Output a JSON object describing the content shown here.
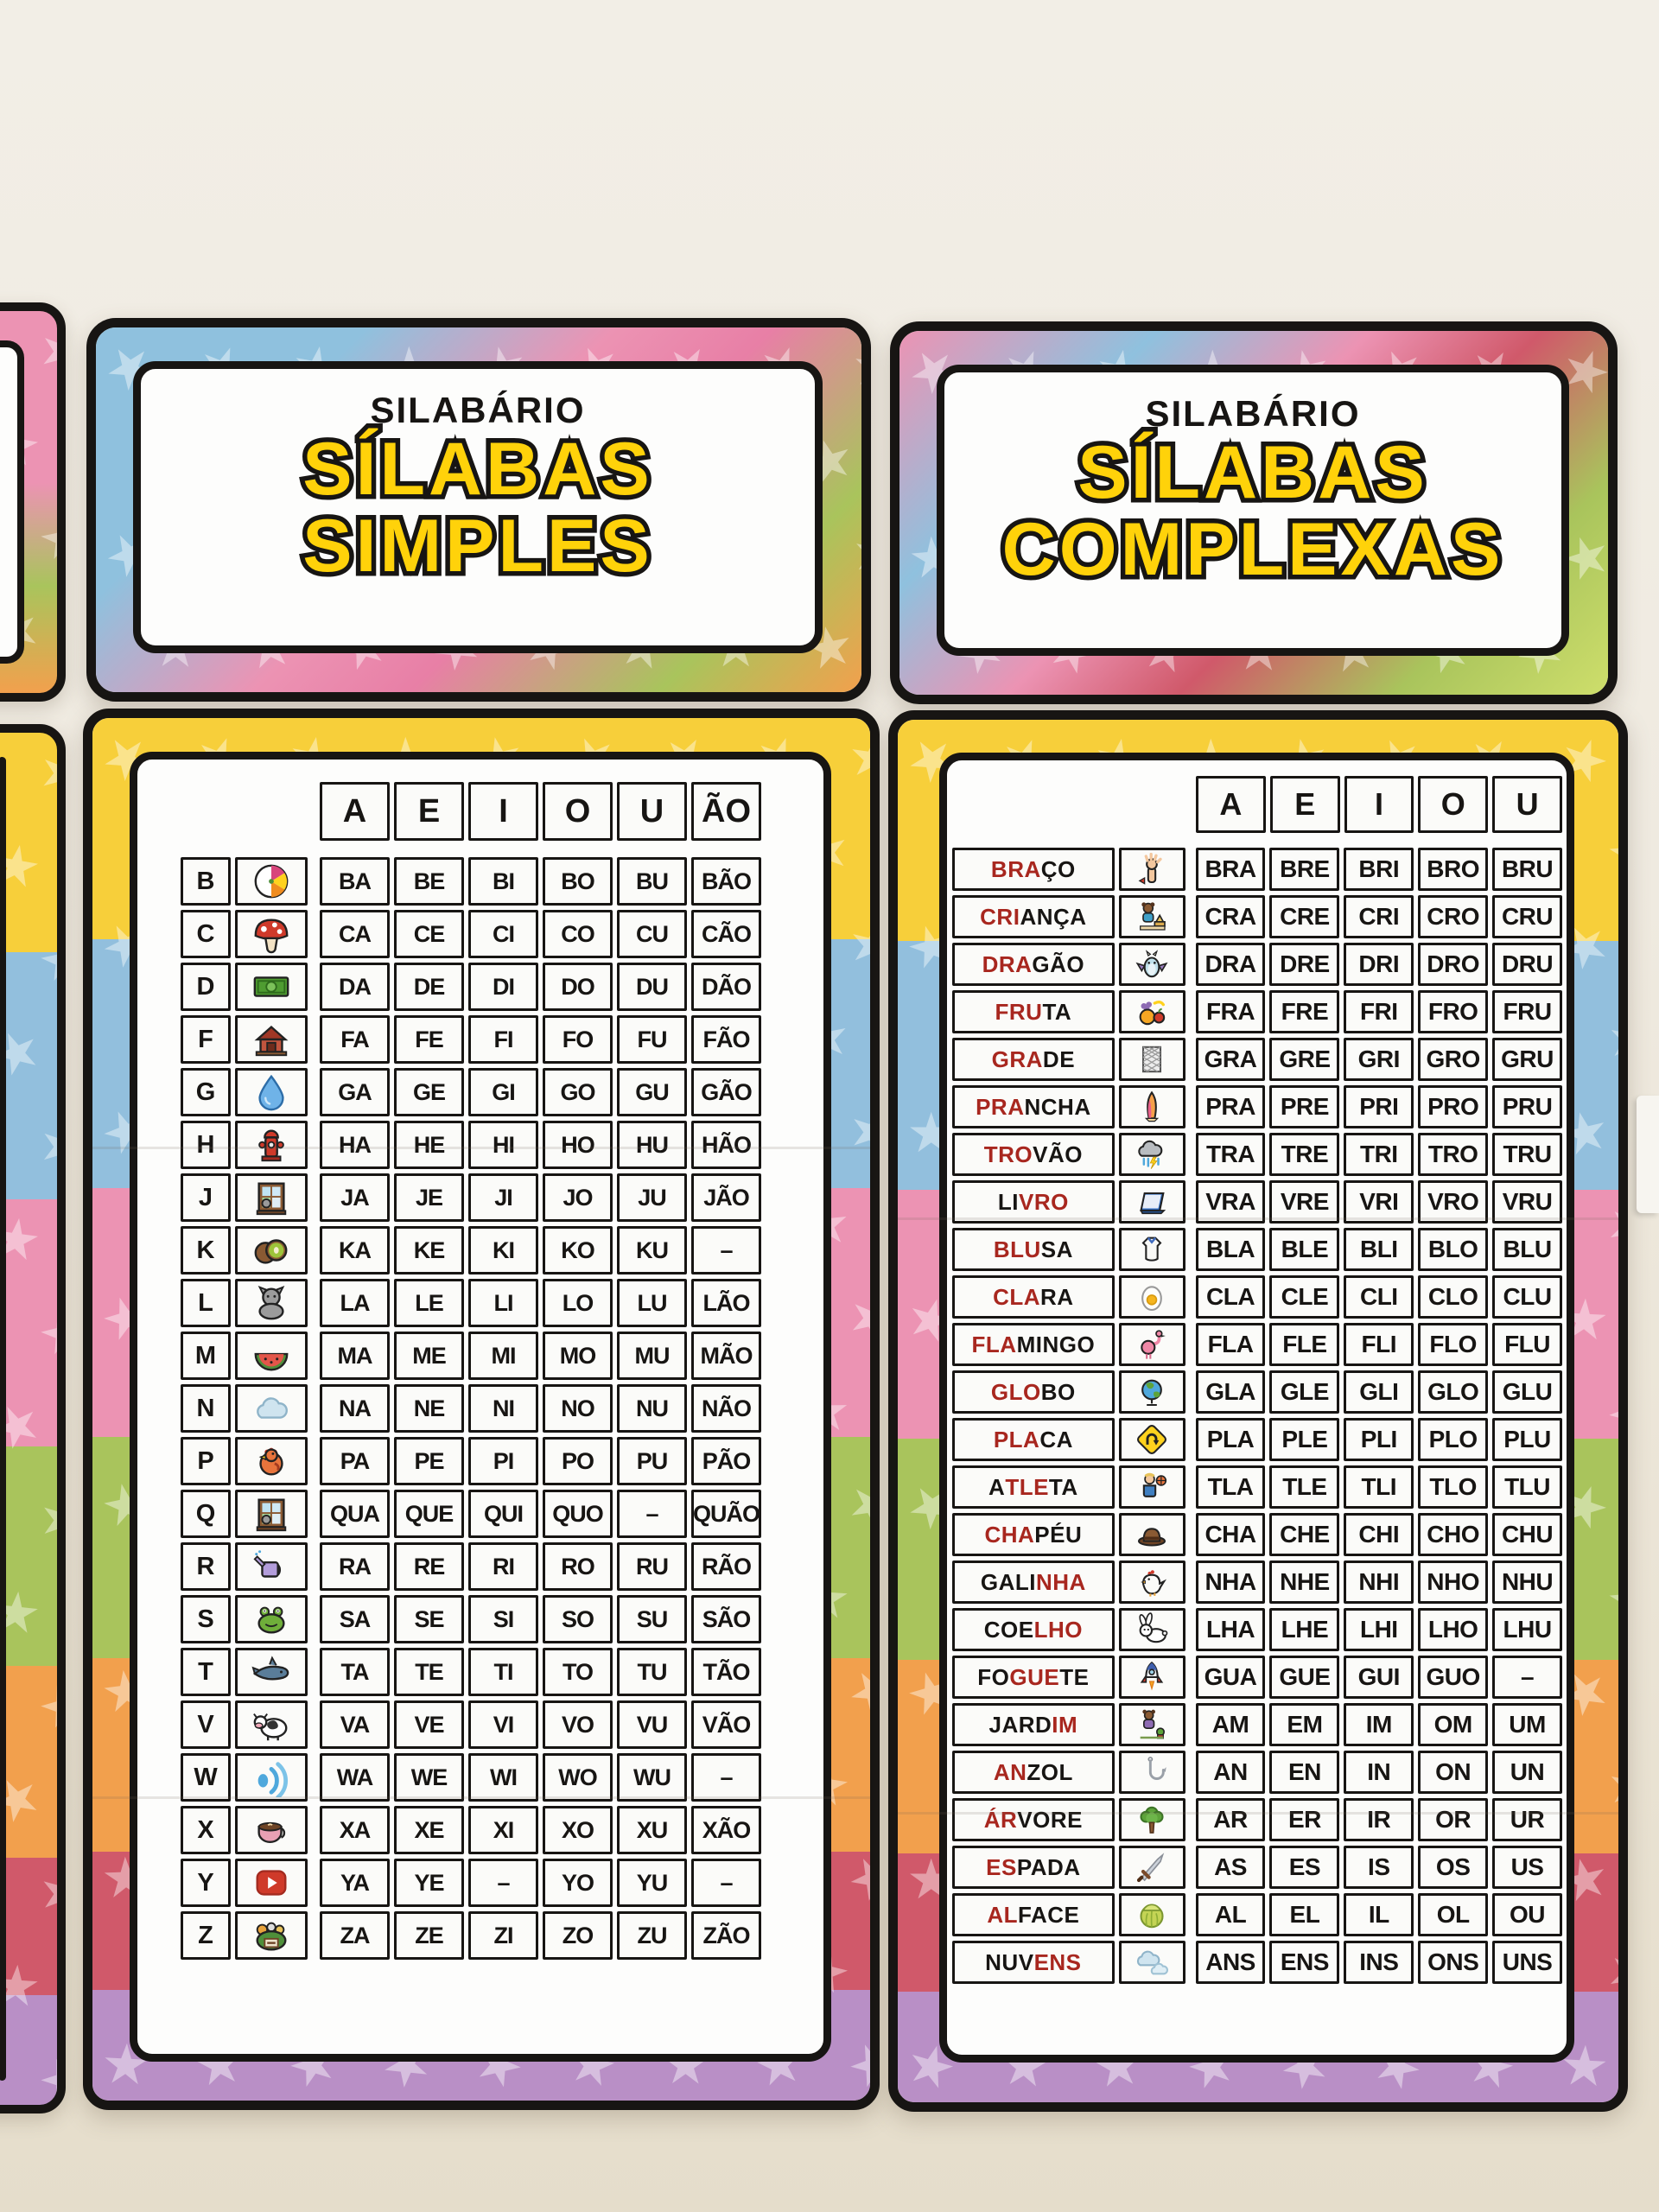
{
  "scene": {
    "description": "two printed syllable posters taped on a classroom wall",
    "wall_color": "#efeae0",
    "accent_red": "#a8271f",
    "title_yellow": "#ffd20a",
    "border_black": "#171513",
    "dash": "–"
  },
  "left_poster": {
    "kicker": "SILABÁRIO",
    "title_line1": "SÍLABAS",
    "title_line2": "SIMPLES",
    "table": {
      "columns": [
        "A",
        "E",
        "I",
        "O",
        "U",
        "ÃO"
      ],
      "rows": [
        {
          "letter": "B",
          "icon": "beach-ball",
          "cells": [
            "BA",
            "BE",
            "BI",
            "BO",
            "BU",
            "BÃO"
          ]
        },
        {
          "letter": "C",
          "icon": "mushroom",
          "cells": [
            "CA",
            "CE",
            "CI",
            "CO",
            "CU",
            "CÃO"
          ]
        },
        {
          "letter": "D",
          "icon": "money-bill",
          "cells": [
            "DA",
            "DE",
            "DI",
            "DO",
            "DU",
            "DÃO"
          ]
        },
        {
          "letter": "F",
          "icon": "farm",
          "cells": [
            "FA",
            "FE",
            "FI",
            "FO",
            "FU",
            "FÃO"
          ]
        },
        {
          "letter": "G",
          "icon": "water-drop",
          "cells": [
            "GA",
            "GE",
            "GI",
            "GO",
            "GU",
            "GÃO"
          ]
        },
        {
          "letter": "H",
          "icon": "fire-hydrant",
          "cells": [
            "HA",
            "HE",
            "HI",
            "HO",
            "HU",
            "HÃO"
          ]
        },
        {
          "letter": "J",
          "icon": "window",
          "cells": [
            "JA",
            "JE",
            "JI",
            "JO",
            "JU",
            "JÃO"
          ]
        },
        {
          "letter": "K",
          "icon": "kiwi",
          "cells": [
            "KA",
            "KE",
            "KI",
            "KO",
            "KU",
            "–"
          ]
        },
        {
          "letter": "L",
          "icon": "cat",
          "cells": [
            "LA",
            "LE",
            "LI",
            "LO",
            "LU",
            "LÃO"
          ]
        },
        {
          "letter": "M",
          "icon": "watermelon",
          "cells": [
            "MA",
            "ME",
            "MI",
            "MO",
            "MU",
            "MÃO"
          ]
        },
        {
          "letter": "N",
          "icon": "cloud",
          "cells": [
            "NA",
            "NE",
            "NI",
            "NO",
            "NU",
            "NÃO"
          ]
        },
        {
          "letter": "P",
          "icon": "rooster",
          "cells": [
            "PA",
            "PE",
            "PI",
            "PO",
            "PU",
            "PÃO"
          ]
        },
        {
          "letter": "Q",
          "icon": "window",
          "cells": [
            "QUA",
            "QUE",
            "QUI",
            "QUO",
            "–",
            "QUÃO"
          ]
        },
        {
          "letter": "R",
          "icon": "watering-can",
          "cells": [
            "RA",
            "RE",
            "RI",
            "RO",
            "RU",
            "RÃO"
          ]
        },
        {
          "letter": "S",
          "icon": "frog",
          "cells": [
            "SA",
            "SE",
            "SI",
            "SO",
            "SU",
            "SÃO"
          ]
        },
        {
          "letter": "T",
          "icon": "shark",
          "cells": [
            "TA",
            "TE",
            "TI",
            "TO",
            "TU",
            "TÃO"
          ]
        },
        {
          "letter": "V",
          "icon": "cow",
          "cells": [
            "VA",
            "VE",
            "VI",
            "VO",
            "VU",
            "VÃO"
          ]
        },
        {
          "letter": "W",
          "icon": "wifi",
          "cells": [
            "WA",
            "WE",
            "WI",
            "WO",
            "WU",
            "–"
          ]
        },
        {
          "letter": "X",
          "icon": "teacup",
          "cells": [
            "XA",
            "XE",
            "XI",
            "XO",
            "XU",
            "XÃO"
          ]
        },
        {
          "letter": "Y",
          "icon": "play-button",
          "cells": [
            "YA",
            "YE",
            "–",
            "YO",
            "YU",
            "–"
          ]
        },
        {
          "letter": "Z",
          "icon": "zoo",
          "cells": [
            "ZA",
            "ZE",
            "ZI",
            "ZO",
            "ZU",
            "ZÃO"
          ]
        }
      ]
    }
  },
  "right_poster": {
    "kicker": "SILABÁRIO",
    "title_line1": "SÍLABAS",
    "title_line2": "COMPLEXAS",
    "table": {
      "columns": [
        "A",
        "E",
        "I",
        "O",
        "U"
      ],
      "rows": [
        {
          "segments": [
            [
              "BRA",
              "r"
            ],
            [
              "ÇO",
              "k"
            ]
          ],
          "icon": "arm",
          "cells": [
            "BRA",
            "BRE",
            "BRI",
            "BRO",
            "BRU"
          ]
        },
        {
          "segments": [
            [
              "CRI",
              "r"
            ],
            [
              "ANÇA",
              "k"
            ]
          ],
          "icon": "child",
          "cells": [
            "CRA",
            "CRE",
            "CRI",
            "CRO",
            "CRU"
          ]
        },
        {
          "segments": [
            [
              "DRA",
              "r"
            ],
            [
              "GÃO",
              "k"
            ]
          ],
          "icon": "dragon",
          "cells": [
            "DRA",
            "DRE",
            "DRI",
            "DRO",
            "DRU"
          ]
        },
        {
          "segments": [
            [
              "FRU",
              "r"
            ],
            [
              "TA",
              "k"
            ]
          ],
          "icon": "fruits",
          "cells": [
            "FRA",
            "FRE",
            "FRI",
            "FRO",
            "FRU"
          ]
        },
        {
          "segments": [
            [
              "GRA",
              "r"
            ],
            [
              "DE",
              "k"
            ]
          ],
          "icon": "grid",
          "cells": [
            "GRA",
            "GRE",
            "GRI",
            "GRO",
            "GRU"
          ]
        },
        {
          "segments": [
            [
              "PRA",
              "r"
            ],
            [
              "NCHA",
              "k"
            ]
          ],
          "icon": "surfboard",
          "cells": [
            "PRA",
            "PRE",
            "PRI",
            "PRO",
            "PRU"
          ]
        },
        {
          "segments": [
            [
              "TRO",
              "r"
            ],
            [
              "VÃO",
              "k"
            ]
          ],
          "icon": "storm-cloud",
          "cells": [
            "TRA",
            "TRE",
            "TRI",
            "TRO",
            "TRU"
          ]
        },
        {
          "segments": [
            [
              "LI",
              "k"
            ],
            [
              "VRO",
              "r"
            ]
          ],
          "icon": "book",
          "cells": [
            "VRA",
            "VRE",
            "VRI",
            "VRO",
            "VRU"
          ]
        },
        {
          "segments": [
            [
              "BLU",
              "r"
            ],
            [
              "SA",
              "k"
            ]
          ],
          "icon": "blouse",
          "cells": [
            "BLA",
            "BLE",
            "BLI",
            "BLO",
            "BLU"
          ]
        },
        {
          "segments": [
            [
              "CLA",
              "r"
            ],
            [
              "RA",
              "k"
            ]
          ],
          "icon": "egg",
          "cells": [
            "CLA",
            "CLE",
            "CLI",
            "CLO",
            "CLU"
          ]
        },
        {
          "segments": [
            [
              "FLA",
              "r"
            ],
            [
              "MINGO",
              "k"
            ]
          ],
          "icon": "flamingo",
          "cells": [
            "FLA",
            "FLE",
            "FLI",
            "FLO",
            "FLU"
          ]
        },
        {
          "segments": [
            [
              "GLO",
              "r"
            ],
            [
              "BO",
              "k"
            ]
          ],
          "icon": "globe",
          "cells": [
            "GLA",
            "GLE",
            "GLI",
            "GLO",
            "GLU"
          ]
        },
        {
          "segments": [
            [
              "PLA",
              "r"
            ],
            [
              "CA",
              "k"
            ]
          ],
          "icon": "u-turn-sign",
          "cells": [
            "PLA",
            "PLE",
            "PLI",
            "PLO",
            "PLU"
          ]
        },
        {
          "segments": [
            [
              "A",
              "k"
            ],
            [
              "TLE",
              "r"
            ],
            [
              "TA",
              "k"
            ]
          ],
          "icon": "athlete",
          "cells": [
            "TLA",
            "TLE",
            "TLI",
            "TLO",
            "TLU"
          ]
        },
        {
          "segments": [
            [
              "CHA",
              "r"
            ],
            [
              "PÉU",
              "k"
            ]
          ],
          "icon": "hat",
          "cells": [
            "CHA",
            "CHE",
            "CHI",
            "CHO",
            "CHU"
          ]
        },
        {
          "segments": [
            [
              "GALI",
              "k"
            ],
            [
              "NHA",
              "r"
            ]
          ],
          "icon": "hen",
          "cells": [
            "NHA",
            "NHE",
            "NHI",
            "NHO",
            "NHU"
          ]
        },
        {
          "segments": [
            [
              "COE",
              "k"
            ],
            [
              "LHO",
              "r"
            ]
          ],
          "icon": "rabbit",
          "cells": [
            "LHA",
            "LHE",
            "LHI",
            "LHO",
            "LHU"
          ]
        },
        {
          "segments": [
            [
              "FO",
              "k"
            ],
            [
              "GUE",
              "r"
            ],
            [
              "TE",
              "k"
            ]
          ],
          "icon": "rocket",
          "cells": [
            "GUA",
            "GUE",
            "GUI",
            "GUO",
            "–"
          ]
        },
        {
          "segments": [
            [
              "JARD",
              "k"
            ],
            [
              "IM",
              "r"
            ]
          ],
          "icon": "gardener",
          "cells": [
            "AM",
            "EM",
            "IM",
            "OM",
            "UM"
          ]
        },
        {
          "segments": [
            [
              "AN",
              "r"
            ],
            [
              "ZOL",
              "k"
            ]
          ],
          "icon": "fishhook",
          "cells": [
            "AN",
            "EN",
            "IN",
            "ON",
            "UN"
          ]
        },
        {
          "segments": [
            [
              "ÁR",
              "r"
            ],
            [
              "VORE",
              "k"
            ]
          ],
          "icon": "tree",
          "cells": [
            "AR",
            "ER",
            "IR",
            "OR",
            "UR"
          ]
        },
        {
          "segments": [
            [
              "ES",
              "r"
            ],
            [
              "PADA",
              "k"
            ]
          ],
          "icon": "sword",
          "cells": [
            "AS",
            "ES",
            "IS",
            "OS",
            "US"
          ]
        },
        {
          "segments": [
            [
              "AL",
              "r"
            ],
            [
              "FACE",
              "k"
            ]
          ],
          "icon": "lettuce",
          "cells": [
            "AL",
            "EL",
            "IL",
            "OL",
            "OU"
          ]
        },
        {
          "segments": [
            [
              "NUV",
              "k"
            ],
            [
              "ENS",
              "r"
            ]
          ],
          "icon": "clouds",
          "cells": [
            "ANS",
            "ENS",
            "INS",
            "ONS",
            "UNS"
          ]
        }
      ]
    }
  }
}
